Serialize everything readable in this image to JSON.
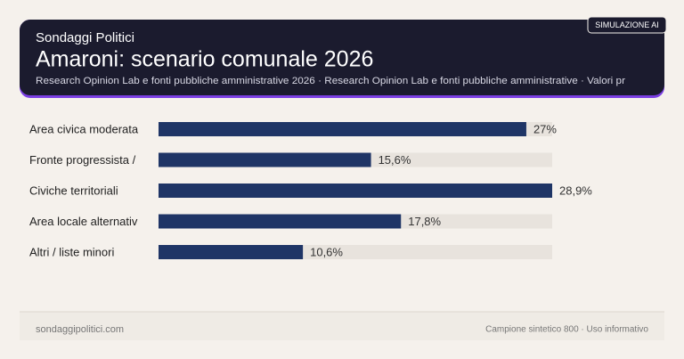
{
  "chart_data": {
    "type": "bar",
    "kicker": "Sondaggi Politici",
    "title": "Amaroni: scenario comunale 2026",
    "subtitle": "Research Opinion Lab e fonti pubbliche amministrative 2026 · Research Opinion Lab e fonti pubbliche amministrative · Valori pr",
    "badge": "SIMULAZIONE AI",
    "categories": [
      "Area civica moderata",
      "Fronte progressista /",
      "Civiche territoriali",
      "Area locale alternativ",
      "Altri / liste minori"
    ],
    "values": [
      27,
      15.6,
      28.9,
      17.8,
      10.6
    ],
    "value_labels": [
      "27%",
      "15,6%",
      "28,9%",
      "17,8%",
      "10,6%"
    ],
    "color": "#1f3566",
    "xlim": [
      0,
      28.9
    ],
    "footer_left": "sondaggipolitici.com",
    "footer_right": "Campione sintetico 800 · Uso informativo"
  }
}
